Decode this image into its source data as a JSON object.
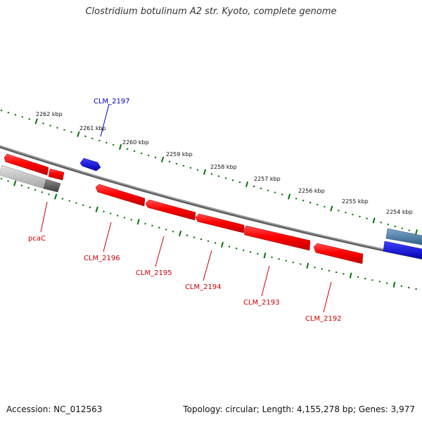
{
  "title": "Clostridium botulinum A2 str. Kyoto, complete genome",
  "footer": {
    "accession": "Accession: NC_012563",
    "topology": "Topology: circular; Length: 4,155,278 bp; Genes: 3,977"
  },
  "colors": {
    "forward_gene": "#ff0000",
    "reverse_gene": "#0000ff",
    "tick": "#007700",
    "backbone": "#777777",
    "forward_label": "#cc0000",
    "reverse_label": "#0000cc"
  },
  "ticks": [
    {
      "label": "2262 kbp"
    },
    {
      "label": "2261 kbp"
    },
    {
      "label": "2260 kbp"
    },
    {
      "label": "2259 kbp"
    },
    {
      "label": "2258 kbp"
    },
    {
      "label": "2257 kbp"
    },
    {
      "label": "2256 kbp"
    },
    {
      "label": "2255 kbp"
    },
    {
      "label": "2254 kbp"
    }
  ],
  "genes": [
    {
      "label": "CLM_2197",
      "strand": "reverse"
    },
    {
      "label": "pcaC",
      "strand": "forward"
    },
    {
      "label": "CLM_2196",
      "strand": "forward"
    },
    {
      "label": "CLM_2195",
      "strand": "forward"
    },
    {
      "label": "CLM_2194",
      "strand": "forward"
    },
    {
      "label": "CLM_2193",
      "strand": "forward"
    },
    {
      "label": "CLM_2192",
      "strand": "forward"
    }
  ]
}
